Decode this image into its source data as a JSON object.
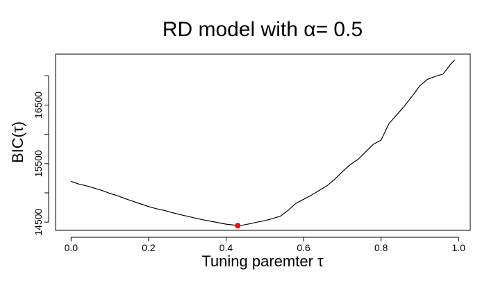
{
  "chart_data": {
    "type": "line",
    "title": "RD model with α= 0.5",
    "xlabel": "Tuning paremter τ",
    "ylabel": "BIC(τ)",
    "xlim": [
      -0.04,
      1.03
    ],
    "ylim": [
      14360,
      17370
    ],
    "x_ticks": [
      0.0,
      0.2,
      0.4,
      0.6,
      0.8,
      1.0
    ],
    "x_tick_labels": [
      "0.0",
      "0.2",
      "0.4",
      "0.6",
      "0.8",
      "1.0"
    ],
    "y_ticks": [
      14500,
      15000,
      15500,
      16000,
      16500,
      17000
    ],
    "y_tick_labels": [
      "14500",
      "",
      "15500",
      "",
      "16500",
      ""
    ],
    "grid": false,
    "series": [
      {
        "color": "#000000",
        "x": [
          0.0,
          0.02,
          0.04,
          0.06,
          0.08,
          0.1,
          0.12,
          0.14,
          0.16,
          0.18,
          0.2,
          0.22,
          0.24,
          0.26,
          0.28,
          0.3,
          0.32,
          0.34,
          0.36,
          0.38,
          0.4,
          0.42,
          0.43,
          0.44,
          0.46,
          0.48,
          0.5,
          0.52,
          0.54,
          0.56,
          0.58,
          0.6,
          0.62,
          0.64,
          0.66,
          0.68,
          0.7,
          0.72,
          0.74,
          0.76,
          0.78,
          0.8,
          0.82,
          0.84,
          0.86,
          0.88,
          0.9,
          0.92,
          0.94,
          0.96,
          0.98,
          0.99
        ],
        "values": [
          15195,
          15150,
          15120,
          15080,
          15040,
          14990,
          14950,
          14900,
          14855,
          14810,
          14765,
          14730,
          14700,
          14665,
          14630,
          14600,
          14570,
          14540,
          14515,
          14490,
          14465,
          14450,
          14440,
          14445,
          14470,
          14500,
          14525,
          14560,
          14600,
          14700,
          14820,
          14890,
          14960,
          15040,
          15120,
          15230,
          15360,
          15480,
          15570,
          15700,
          15830,
          15900,
          16180,
          16330,
          16480,
          16650,
          16830,
          16940,
          16990,
          17030,
          17200,
          17270
        ]
      }
    ],
    "highlight": {
      "x": 0.43,
      "y": 14440,
      "color": "#ff0000"
    }
  }
}
